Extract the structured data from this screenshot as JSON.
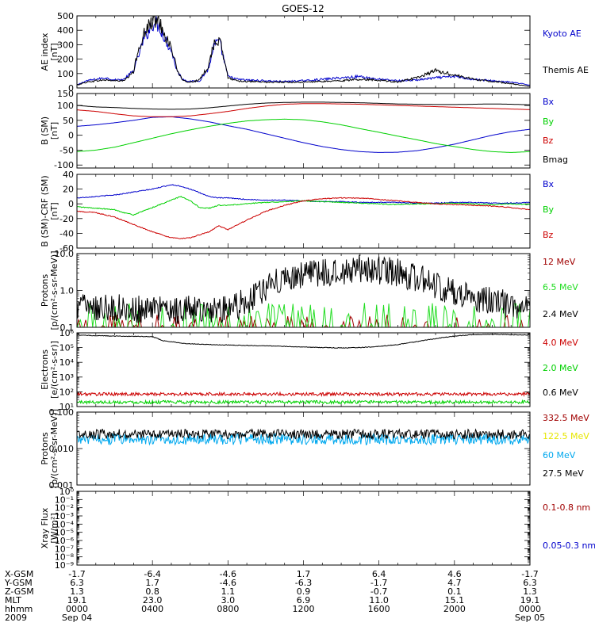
{
  "title": "GOES-12",
  "colors": {
    "black": "#000000",
    "blue": "#0000cc",
    "red": "#cc0000",
    "green": "#00d000",
    "darkred": "#a00000",
    "lime": "#22dd22",
    "yellow": "#e6e600",
    "cyan": "#00a8ee"
  },
  "chart_data": [
    {
      "id": "ae",
      "type": "line",
      "ylabel": "AE index\n[nT]",
      "ylim": [
        0,
        500
      ],
      "yticks": [
        0,
        100,
        200,
        300,
        400,
        500
      ],
      "log": false,
      "series": [
        {
          "name": "Kyoto AE",
          "color": "blue",
          "x": [
            0,
            0.5,
            1,
            1.5,
            2,
            2.5,
            3,
            3.2,
            3.5,
            3.8,
            4.1,
            4.4,
            4.7,
            5,
            5.3,
            5.6,
            6,
            6.5,
            7,
            7.2,
            7.4,
            7.6,
            7.8,
            8,
            8.5,
            9,
            10,
            11,
            12,
            13,
            14,
            15,
            16,
            17,
            18,
            19,
            20,
            21,
            22,
            23,
            24
          ],
          "y": [
            20,
            50,
            60,
            70,
            55,
            60,
            120,
            200,
            320,
            400,
            460,
            420,
            330,
            260,
            120,
            60,
            45,
            50,
            140,
            270,
            320,
            300,
            190,
            80,
            60,
            55,
            50,
            45,
            50,
            60,
            70,
            80,
            60,
            50,
            55,
            70,
            80,
            60,
            50,
            40,
            20
          ]
        },
        {
          "name": "Themis AE",
          "color": "black",
          "x": [
            0,
            0.5,
            1,
            1.5,
            2,
            2.5,
            3,
            3.2,
            3.5,
            3.8,
            4.1,
            4.4,
            4.7,
            5,
            5.3,
            5.6,
            6,
            6.5,
            7,
            7.2,
            7.4,
            7.6,
            7.8,
            8,
            8.5,
            9,
            10,
            11,
            12,
            13,
            14,
            15,
            16,
            17,
            18,
            19,
            20,
            21,
            22,
            23,
            24
          ],
          "y": [
            20,
            40,
            50,
            55,
            50,
            50,
            110,
            240,
            360,
            430,
            470,
            450,
            360,
            280,
            130,
            50,
            40,
            55,
            160,
            290,
            330,
            310,
            200,
            70,
            50,
            45,
            40,
            40,
            40,
            45,
            50,
            60,
            55,
            40,
            70,
            120,
            90,
            60,
            45,
            30,
            10
          ]
        }
      ]
    },
    {
      "id": "b",
      "type": "line",
      "ylabel": "B (SM)\n[nT]",
      "ylim": [
        -110,
        140
      ],
      "yticks": [
        -100,
        -50,
        0,
        50,
        100,
        150
      ],
      "log": false,
      "series": [
        {
          "name": "Bx",
          "color": "blue",
          "x": [
            0,
            1,
            2,
            3,
            4,
            5,
            6,
            7,
            8,
            9,
            10,
            11,
            12,
            13,
            14,
            15,
            16,
            17,
            18,
            19,
            20,
            21,
            22,
            23,
            24
          ],
          "y": [
            30,
            35,
            42,
            50,
            60,
            62,
            55,
            45,
            32,
            20,
            5,
            -10,
            -25,
            -38,
            -48,
            -55,
            -58,
            -57,
            -52,
            -42,
            -30,
            -15,
            0,
            12,
            20
          ]
        },
        {
          "name": "By",
          "color": "green",
          "x": [
            0,
            1,
            2,
            3,
            4,
            5,
            6,
            7,
            8,
            9,
            10,
            11,
            12,
            13,
            14,
            15,
            16,
            17,
            18,
            19,
            20,
            21,
            22,
            23,
            24
          ],
          "y": [
            -55,
            -50,
            -40,
            -25,
            -10,
            5,
            18,
            30,
            40,
            48,
            52,
            54,
            52,
            45,
            35,
            22,
            10,
            -3,
            -15,
            -28,
            -38,
            -48,
            -55,
            -58,
            -55
          ]
        },
        {
          "name": "Bz",
          "color": "red",
          "x": [
            0,
            1,
            2,
            3,
            4,
            5,
            6,
            7,
            8,
            9,
            10,
            11,
            12,
            13,
            14,
            15,
            16,
            17,
            18,
            19,
            20,
            21,
            22,
            23,
            24
          ],
          "y": [
            85,
            80,
            72,
            65,
            62,
            62,
            65,
            72,
            80,
            90,
            98,
            104,
            106,
            106,
            105,
            104,
            102,
            100,
            98,
            96,
            94,
            92,
            90,
            88,
            86
          ]
        },
        {
          "name": "Bmag",
          "color": "black",
          "x": [
            0,
            1,
            2,
            3,
            4,
            5,
            6,
            7,
            8,
            9,
            10,
            11,
            12,
            13,
            14,
            15,
            16,
            17,
            18,
            19,
            20,
            21,
            22,
            23,
            24
          ],
          "y": [
            100,
            95,
            93,
            90,
            88,
            87,
            88,
            92,
            98,
            104,
            108,
            110,
            111,
            111,
            110,
            109,
            107,
            105,
            104,
            103,
            103,
            104,
            105,
            104,
            102
          ]
        }
      ]
    },
    {
      "id": "bd",
      "type": "line",
      "ylabel": "B (SM)-CRF (SM)\n[nT]",
      "ylim": [
        -60,
        40
      ],
      "yticks": [
        -60,
        -40,
        -20,
        0,
        20,
        40
      ],
      "log": false,
      "series": [
        {
          "name": "Bx",
          "color": "blue",
          "x": [
            0,
            1,
            2,
            3,
            4,
            5,
            5.5,
            6,
            6.5,
            7,
            7.5,
            8,
            9,
            10,
            11,
            12,
            13,
            14,
            15,
            16,
            17,
            18,
            19,
            20,
            21,
            22,
            23,
            24
          ],
          "y": [
            8,
            10,
            12,
            16,
            20,
            26,
            24,
            20,
            15,
            10,
            8,
            8,
            6,
            5,
            5,
            4,
            3,
            3,
            2,
            2,
            2,
            1,
            1,
            2,
            2,
            1,
            1,
            2
          ]
        },
        {
          "name": "By",
          "color": "green",
          "x": [
            0,
            1,
            2,
            2.5,
            3,
            3.5,
            4,
            4.5,
            5,
            5.5,
            6,
            6.5,
            7,
            7.5,
            8,
            9,
            10,
            11,
            12,
            13,
            14,
            15,
            16,
            17,
            18,
            19,
            20,
            21,
            22,
            23,
            24
          ],
          "y": [
            -4,
            -6,
            -8,
            -12,
            -15,
            -10,
            -5,
            0,
            5,
            10,
            4,
            -5,
            -6,
            -2,
            -2,
            0,
            2,
            3,
            4,
            3,
            2,
            1,
            0,
            -1,
            0,
            0,
            1,
            0,
            -1,
            0,
            -1
          ]
        },
        {
          "name": "Bz",
          "color": "red",
          "x": [
            0,
            1,
            2,
            3,
            4,
            5,
            5.5,
            6,
            6.5,
            7,
            7.5,
            8,
            9,
            10,
            11,
            12,
            13,
            14,
            15,
            16,
            17,
            18,
            19,
            20,
            21,
            22,
            23,
            24
          ],
          "y": [
            -10,
            -12,
            -18,
            -28,
            -38,
            -46,
            -47,
            -46,
            -42,
            -38,
            -30,
            -35,
            -22,
            -10,
            -2,
            4,
            7,
            8,
            8,
            6,
            4,
            2,
            0,
            -1,
            -2,
            -3,
            -5,
            -8
          ]
        }
      ]
    },
    {
      "id": "protons_low",
      "type": "line",
      "ylabel": "Protons\n[p/(cm²-s-sr-MeV)]",
      "ylim": [
        0.1,
        10
      ],
      "ytickLabels": [
        "0.1",
        "1.0",
        "10.0"
      ],
      "log": true,
      "series": [
        {
          "name": "12 MeV",
          "color": "darkred",
          "baseline": 0.1,
          "peak": 0.2
        },
        {
          "name": "6.5 MeV",
          "color": "lime",
          "baseline": 0.1,
          "peak": 0.4
        },
        {
          "name": "2.4 MeV",
          "color": "black",
          "x": [
            0,
            2,
            4,
            6,
            8,
            9,
            10,
            11,
            12,
            13,
            14,
            15,
            16,
            17,
            18,
            19,
            20,
            21,
            22,
            23,
            24
          ],
          "y": [
            0.4,
            0.35,
            0.3,
            0.3,
            0.3,
            0.5,
            1.2,
            2.0,
            2.8,
            3.2,
            3.5,
            3.8,
            3.6,
            3.0,
            2.2,
            1.3,
            0.8,
            0.6,
            0.5,
            0.4,
            0.35
          ]
        }
      ]
    },
    {
      "id": "electrons",
      "type": "line",
      "ylabel": "Electrons\n[e/(cm²-s-sr)]",
      "ylim": [
        10,
        1000000
      ],
      "ytickLabels": [
        "10¹",
        "10²",
        "10³",
        "10⁴",
        "10⁵",
        "10⁶"
      ],
      "log": true,
      "series": [
        {
          "name": "4.0 MeV",
          "color": "red",
          "flat": 70
        },
        {
          "name": "2.0 MeV",
          "color": "green",
          "flat": 20
        },
        {
          "name": "0.6 MeV",
          "color": "black",
          "x": [
            0,
            1,
            2,
            3,
            4,
            4.5,
            5,
            5.5,
            6,
            7,
            8,
            9,
            10,
            11,
            12,
            13,
            14,
            15,
            16,
            17,
            18,
            19,
            20,
            21,
            22,
            23,
            24
          ],
          "y": [
            700000,
            650000,
            600000,
            580000,
            550000,
            300000,
            250000,
            200000,
            180000,
            160000,
            150000,
            140000,
            130000,
            120000,
            110000,
            100000,
            95000,
            100000,
            120000,
            160000,
            250000,
            400000,
            600000,
            750000,
            800000,
            750000,
            700000
          ]
        }
      ]
    },
    {
      "id": "protons_high",
      "type": "line",
      "ylabel": "Protons\n[p/(cm²-s-sr-MeV)]",
      "ylim": [
        0.001,
        0.1
      ],
      "ytickLabels": [
        "0.001",
        "0.010",
        "0.100"
      ],
      "log": true,
      "series": [
        {
          "name": "332.5 MeV",
          "color": "darkred"
        },
        {
          "name": "122.5 MeV",
          "color": "yellow"
        },
        {
          "name": "60 MeV",
          "color": "cyan",
          "flat": 0.018
        },
        {
          "name": "27.5 MeV",
          "color": "black",
          "flat": 0.025
        }
      ]
    },
    {
      "id": "xray",
      "type": "line",
      "ylabel": "Xray Flux\n[W/m²]",
      "ylim": [
        1e-09,
        1
      ],
      "ytickLabels": [
        "10⁻⁹",
        "10⁻⁸",
        "10⁻⁷",
        "10⁻⁶",
        "10⁻⁵",
        "10⁻⁴",
        "10⁻³",
        "10⁻²",
        "10⁻¹",
        "10⁰"
      ],
      "log": true,
      "series": [
        {
          "name": "0.1-0.8 nm",
          "color": "darkred"
        },
        {
          "name": "0.05-0.3 nm",
          "color": "blue"
        }
      ]
    }
  ],
  "ephemeris": {
    "labels": [
      "X-GSM",
      "Y-GSM",
      "Z-GSM",
      "MLT",
      "hhmm",
      "2009"
    ],
    "columns": [
      [
        "-1.7",
        "6.3",
        "1.3",
        "19.1",
        "0000",
        "Sep 04"
      ],
      [
        "-6.4",
        "1.7",
        "0.8",
        "23.0",
        "0400",
        ""
      ],
      [
        "-4.6",
        "-4.6",
        "1.1",
        "3.0",
        "0800",
        ""
      ],
      [
        "1.7",
        "-6.3",
        "0.9",
        "6.9",
        "1200",
        ""
      ],
      [
        "6.4",
        "-1.7",
        "-0.7",
        "11.0",
        "1600",
        ""
      ],
      [
        "4.6",
        "4.7",
        "0.1",
        "15.1",
        "2000",
        ""
      ],
      [
        "-1.7",
        "6.3",
        "1.3",
        "19.1",
        "0000",
        "Sep 05"
      ]
    ]
  }
}
